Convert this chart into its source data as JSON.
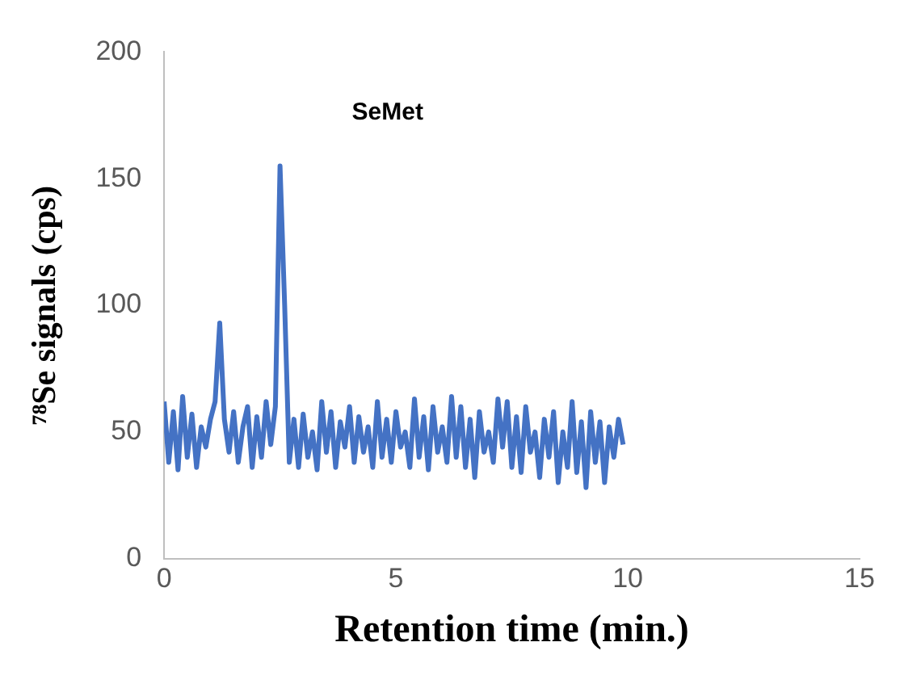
{
  "chart_data": {
    "type": "line",
    "xlabel": "Retention time (min.)",
    "ylabel": "⁷⁸Se signals (cps)",
    "annotations": [
      "SeMet"
    ],
    "x": [
      0,
      0.1,
      0.2,
      0.3,
      0.4,
      0.5,
      0.6,
      0.7,
      0.8,
      0.9,
      1.0,
      1.1,
      1.2,
      1.3,
      1.4,
      1.5,
      1.6,
      1.7,
      1.8,
      1.9,
      2.0,
      2.1,
      2.2,
      2.3,
      2.4,
      2.5,
      2.6,
      2.7,
      2.8,
      2.9,
      3.0,
      3.1,
      3.2,
      3.3,
      3.4,
      3.5,
      3.6,
      3.7,
      3.8,
      3.9,
      4.0,
      4.1,
      4.2,
      4.3,
      4.4,
      4.5,
      4.6,
      4.7,
      4.8,
      4.9,
      5.0,
      5.1,
      5.2,
      5.3,
      5.4,
      5.5,
      5.6,
      5.7,
      5.8,
      5.9,
      6.0,
      6.1,
      6.2,
      6.3,
      6.4,
      6.5,
      6.6,
      6.7,
      6.8,
      6.9,
      7.0,
      7.1,
      7.2,
      7.3,
      7.4,
      7.5,
      7.6,
      7.7,
      7.8,
      7.9,
      8.0,
      8.1,
      8.2,
      8.3,
      8.4,
      8.5,
      8.6,
      8.7,
      8.8,
      8.9,
      9.0,
      9.1,
      9.2,
      9.3,
      9.4,
      9.5,
      9.6,
      9.7,
      9.8,
      9.9
    ],
    "series": [
      {
        "color": "#4472c4",
        "values": [
          62,
          38,
          58,
          35,
          64,
          40,
          57,
          36,
          52,
          44,
          55,
          62,
          93,
          55,
          42,
          58,
          38,
          52,
          60,
          36,
          56,
          40,
          62,
          45,
          60,
          155,
          100,
          38,
          55,
          36,
          57,
          40,
          50,
          35,
          62,
          42,
          58,
          36,
          54,
          44,
          60,
          38,
          56,
          42,
          52,
          36,
          62,
          40,
          55,
          38,
          58,
          44,
          50,
          36,
          63,
          40,
          56,
          35,
          60,
          42,
          52,
          38,
          64,
          40,
          60,
          36,
          55,
          32,
          58,
          42,
          50,
          38,
          63,
          44,
          62,
          36,
          56,
          34,
          60,
          42,
          50,
          32,
          55,
          40,
          58,
          30,
          50,
          36,
          62,
          34,
          54,
          28,
          58,
          38,
          54,
          30,
          52,
          40,
          55,
          45
        ]
      }
    ],
    "xlim": [
      0,
      15
    ],
    "xticks": [
      0,
      5,
      10,
      15
    ],
    "ylim": [
      0,
      200
    ],
    "yticks": [
      0,
      50,
      100,
      150,
      200
    ],
    "grid": false,
    "legend": false,
    "marker": "none",
    "line_style": "solid"
  }
}
